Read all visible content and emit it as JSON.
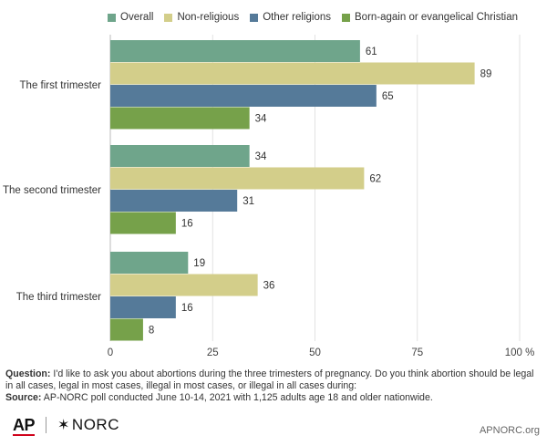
{
  "legend": [
    {
      "name": "Overall",
      "color": "#6fa58b"
    },
    {
      "name": "Non-religious",
      "color": "#d3ce8a"
    },
    {
      "name": "Other religions",
      "color": "#557a99"
    },
    {
      "name": "Born-again or evangelical Christian",
      "color": "#76a14a"
    }
  ],
  "chart_data": {
    "type": "bar",
    "orientation": "horizontal",
    "categories": [
      "The first trimester",
      "The second trimester",
      "The third trimester"
    ],
    "series": [
      {
        "name": "Overall",
        "color": "#6fa58b",
        "values": [
          61,
          34,
          19
        ]
      },
      {
        "name": "Non-religious",
        "color": "#d3ce8a",
        "values": [
          89,
          62,
          36
        ]
      },
      {
        "name": "Other religions",
        "color": "#557a99",
        "values": [
          65,
          31,
          16
        ]
      },
      {
        "name": "Born-again or evangelical Christian",
        "color": "#76a14a",
        "values": [
          34,
          16,
          8
        ]
      }
    ],
    "xlim": [
      0,
      100
    ],
    "ticks": [
      0,
      25,
      50,
      75,
      100
    ],
    "tick_labels": [
      "0",
      "25",
      "50",
      "75",
      "100 %"
    ],
    "grid": true,
    "legend_position": "top"
  },
  "footnote": {
    "question_label": "Question:",
    "question_text": " I'd like to ask you about abortions during the three trimesters of pregnancy. Do you think abortion should be legal in all cases, legal in most cases, illegal in most cases, or illegal in all cases during:",
    "source_label": "Source:",
    "source_text": " AP-NORC poll conducted June 10-14, 2021 with 1,125 adults age 18 and older nationwide."
  },
  "logos": {
    "ap": "AP",
    "norc_star": "✶",
    "norc": "NORC"
  },
  "site": "APNORC.org"
}
